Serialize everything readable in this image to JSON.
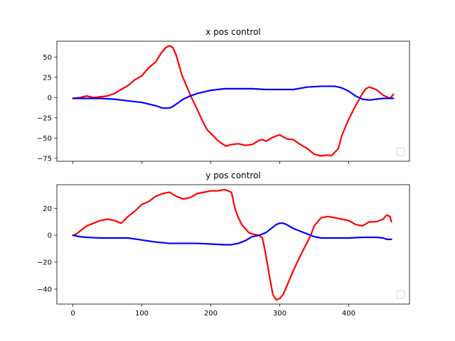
{
  "chart_data": [
    {
      "type": "line",
      "title": "x pos control",
      "xlabel": "",
      "ylabel": "",
      "xlim": [
        -23.25,
        488.25
      ],
      "ylim": [
        -78.7,
        69.7
      ],
      "xticks": [
        0,
        100,
        200,
        300,
        400
      ],
      "show_xtick_labels": false,
      "yticks": [
        -75,
        -50,
        -25,
        0,
        25,
        50
      ],
      "grid": false,
      "legend": "lower-right (empty)",
      "series": [
        {
          "color": "#ff0000",
          "x": [
            0,
            10,
            20,
            30,
            40,
            50,
            60,
            70,
            80,
            90,
            100,
            110,
            120,
            128,
            135,
            140,
            145,
            150,
            158,
            165,
            172,
            180,
            188,
            195,
            200,
            210,
            215,
            222,
            230,
            240,
            250,
            260,
            270,
            275,
            280,
            290,
            300,
            310,
            320,
            330,
            340,
            350,
            360,
            370,
            375,
            385,
            390,
            400,
            410,
            420,
            425,
            430,
            440,
            450,
            460,
            465
          ],
          "y": [
            -1,
            0,
            2,
            0,
            1,
            2,
            5,
            10,
            15,
            22,
            27,
            37,
            44,
            55,
            62,
            64,
            62,
            52,
            28,
            14,
            0,
            -14,
            -29,
            -40,
            -44,
            -53,
            -56,
            -60,
            -58,
            -57,
            -59,
            -58,
            -53,
            -52,
            -54,
            -49,
            -46,
            -51,
            -52,
            -58,
            -63,
            -70,
            -72,
            -71,
            -72,
            -63,
            -47,
            -27,
            -10,
            5,
            11,
            13,
            10,
            3,
            -1,
            4
          ]
        },
        {
          "color": "#0000ff",
          "x": [
            0,
            20,
            40,
            60,
            80,
            100,
            120,
            130,
            140,
            145,
            150,
            160,
            170,
            180,
            200,
            220,
            240,
            260,
            280,
            300,
            320,
            340,
            360,
            380,
            390,
            400,
            410,
            420,
            430,
            440,
            450,
            460,
            465
          ],
          "y": [
            -1,
            -1,
            -1,
            -2,
            -4,
            -6,
            -10,
            -13,
            -13,
            -11,
            -8,
            -2,
            2,
            5,
            9,
            11,
            11,
            11,
            10,
            10,
            10,
            13,
            14,
            14,
            12,
            8,
            2,
            -2,
            -3,
            -2,
            -1,
            -1,
            -1
          ]
        }
      ]
    },
    {
      "type": "line",
      "title": "y pos control",
      "xlabel": "",
      "ylabel": "",
      "xlim": [
        -23.25,
        488.25
      ],
      "ylim": [
        -51.1,
        37.6
      ],
      "xticks": [
        0,
        100,
        200,
        300,
        400
      ],
      "show_xtick_labels": true,
      "yticks": [
        -40,
        -20,
        0,
        20
      ],
      "grid": false,
      "legend": "lower-right (empty)",
      "series": [
        {
          "color": "#ff0000",
          "x": [
            0,
            5,
            10,
            20,
            30,
            40,
            50,
            60,
            70,
            80,
            90,
            100,
            110,
            120,
            130,
            140,
            150,
            160,
            170,
            180,
            190,
            200,
            210,
            220,
            230,
            235,
            240,
            245,
            250,
            255,
            260,
            270,
            275,
            280,
            285,
            290,
            295,
            300,
            305,
            310,
            320,
            330,
            340,
            345,
            350,
            360,
            370,
            380,
            390,
            400,
            410,
            420,
            430,
            440,
            450,
            455,
            460,
            462
          ],
          "y": [
            0,
            1,
            3,
            7,
            9,
            11,
            12,
            11,
            9,
            14,
            18,
            23,
            25,
            29,
            31,
            32,
            29,
            27,
            28,
            31,
            32,
            33,
            33,
            34,
            32,
            20,
            13,
            8,
            5,
            2,
            1,
            0,
            -2,
            -15,
            -30,
            -44,
            -48,
            -47,
            -44,
            -38,
            -26,
            -15,
            -5,
            0,
            7,
            13,
            14,
            13,
            12,
            11,
            8,
            7,
            10,
            10,
            12,
            15,
            14,
            10
          ]
        },
        {
          "color": "#0000ff",
          "x": [
            0,
            10,
            20,
            40,
            60,
            80,
            100,
            120,
            140,
            160,
            180,
            200,
            220,
            230,
            240,
            250,
            260,
            270,
            280,
            290,
            295,
            300,
            305,
            310,
            320,
            330,
            340,
            350,
            360,
            370,
            380,
            400,
            420,
            440,
            450,
            455,
            460,
            462
          ],
          "y": [
            0,
            -1,
            -1.5,
            -2,
            -2,
            -2,
            -3.5,
            -5,
            -6,
            -6,
            -6,
            -6.5,
            -7,
            -7,
            -6,
            -4,
            -1,
            0,
            2,
            6,
            8,
            9,
            9,
            8,
            5,
            3,
            1,
            -1,
            -2,
            -2,
            -2,
            -2,
            -1.5,
            -1.5,
            -2,
            -3,
            -3,
            -3
          ]
        }
      ]
    }
  ]
}
